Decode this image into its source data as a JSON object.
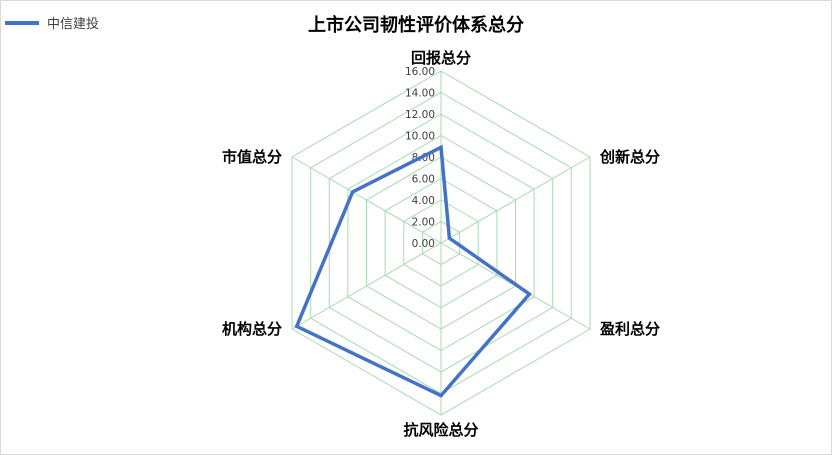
{
  "chart_data": {
    "type": "radar",
    "title": "上市公司韧性评价体系总分",
    "axes": [
      "回报总分",
      "创新总分",
      "盈利总分",
      "抗风险总分",
      "机构总分",
      "市值总分"
    ],
    "ticks": [
      "0.00",
      "2.00",
      "4.00",
      "6.00",
      "8.00",
      "10.00",
      "12.00",
      "14.00",
      "16.00"
    ],
    "rlim": [
      0,
      16
    ],
    "grid": true,
    "legend_position": "top-left",
    "series": [
      {
        "name": "中信建投",
        "values": [
          8.9,
          0.9,
          9.5,
          14.2,
          15.5,
          9.5
        ]
      }
    ],
    "colors": {
      "series": "#4472c4",
      "grid": "#a9d9b0"
    }
  }
}
